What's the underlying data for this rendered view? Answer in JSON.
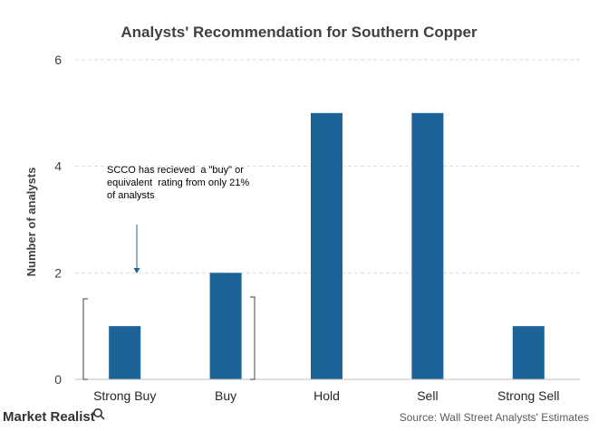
{
  "chart_data": {
    "type": "bar",
    "title": "Analysts' Recommendation for Southern Copper",
    "categories": [
      "Strong Buy",
      "Buy",
      "Hold",
      "Sell",
      "Strong Sell"
    ],
    "values": [
      1,
      2,
      5,
      5,
      1
    ],
    "xlabel": "",
    "ylabel": "Number of analysts",
    "ylim": [
      0,
      6
    ],
    "yticks": [
      0,
      2,
      4,
      6
    ],
    "grid": true,
    "bar_color": "#1c6397",
    "annotation": "SCCO has recieved  a \"buy\" or equivalent  rating from only 21% of analysts"
  },
  "footer": {
    "brand": "Market Realist",
    "source": "Source: Wall Street Analysts' Estimates"
  }
}
